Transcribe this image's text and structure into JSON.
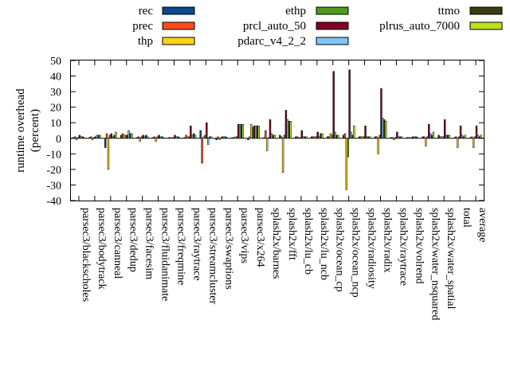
{
  "chart_data": {
    "type": "bar",
    "ylabel": "runtime overhead\n(percent)",
    "ylim": [
      -40,
      50
    ],
    "yticks": [
      -40,
      -30,
      -20,
      -10,
      0,
      10,
      20,
      30,
      40,
      50
    ],
    "grid": false,
    "legend_position": "top",
    "categories": [
      "parsec3/blackscholes",
      "parsec3/bodytrack",
      "parsec3/canneal",
      "parsec3/dedup",
      "parsec3/facesim",
      "parsec3/fluidanimate",
      "parsec3/freqmine",
      "parsec3/raytrace",
      "parsec3/streamcluster",
      "parsec3/swaptions",
      "parsec3/vips",
      "parsec3/x264",
      "splash2x/barnes",
      "splash2x/fft",
      "splash2x/lu_cb",
      "splash2x/lu_ncb",
      "splash2x/ocean_cp",
      "splash2x/ocean_ncp",
      "splash2x/radiosity",
      "splash2x/radix",
      "splash2x/raytrace",
      "splash2x/volrend",
      "splash2x/water_nsquared",
      "splash2x/water_spatial",
      "total",
      "average"
    ],
    "series": [
      {
        "name": "rec",
        "color": "#0b4a8c",
        "values": [
          0.5,
          0.5,
          -6,
          2,
          0.5,
          0.5,
          0.5,
          0.5,
          5,
          -1,
          0.5,
          -1,
          0.5,
          2,
          1,
          1,
          1,
          2,
          1,
          1,
          0.5,
          0.5,
          1,
          2,
          0.5,
          0.5
        ]
      },
      {
        "name": "prec",
        "color": "#ff4a1a",
        "values": [
          1,
          1,
          3,
          3,
          1,
          1,
          0.5,
          2,
          -16,
          1,
          0.5,
          1,
          5,
          1,
          1,
          1,
          1,
          3,
          1,
          1,
          0.5,
          0.5,
          1,
          1,
          1,
          1
        ]
      },
      {
        "name": "thp",
        "color": "#ffd21f",
        "values": [
          -1,
          -1,
          -20,
          2,
          -2,
          -2,
          0.5,
          1,
          1,
          -1,
          1,
          9,
          -8,
          -22,
          0.5,
          1,
          3,
          -33,
          1,
          -10,
          -1,
          0.5,
          -5,
          1,
          -6,
          -6
        ]
      },
      {
        "name": "ethp",
        "color": "#4f9a1e",
        "values": [
          0.5,
          0.5,
          2,
          2,
          1,
          1,
          0.5,
          1,
          2,
          0.5,
          1,
          7,
          0.5,
          2,
          0.5,
          1,
          2,
          -12,
          1,
          2,
          0.5,
          0.5,
          1,
          1,
          1,
          1
        ]
      },
      {
        "name": "prcl_auto_50",
        "color": "#800026",
        "values": [
          2,
          1,
          3,
          2,
          2,
          2,
          2,
          8,
          10,
          1,
          9,
          8,
          12,
          18,
          5,
          4,
          43,
          44,
          8,
          32,
          4,
          1,
          9,
          12,
          8,
          8
        ]
      },
      {
        "name": "pdarc_v4_2_2",
        "color": "#7ec5f5",
        "values": [
          1,
          2,
          1,
          5,
          1,
          1,
          1,
          2,
          -4,
          1,
          9,
          8,
          3,
          12,
          1,
          1,
          4,
          4,
          1,
          13,
          1,
          1,
          3,
          2,
          2,
          2
        ]
      },
      {
        "name": "ttmo",
        "color": "#3a3d12",
        "values": [
          1,
          2,
          2,
          3,
          2,
          1,
          1,
          3,
          1,
          1,
          9,
          8,
          2,
          11,
          1,
          3,
          2,
          2,
          1,
          12,
          1,
          1,
          2,
          2,
          1,
          1
        ]
      },
      {
        "name": "plrus_auto_7000",
        "color": "#b9e21e",
        "values": [
          0.5,
          2,
          4,
          3,
          1,
          0.5,
          0.5,
          2,
          1,
          0.5,
          9,
          8,
          2,
          11,
          1,
          3,
          2,
          8,
          1,
          11,
          1,
          0.5,
          4,
          2,
          2,
          2
        ]
      }
    ]
  }
}
